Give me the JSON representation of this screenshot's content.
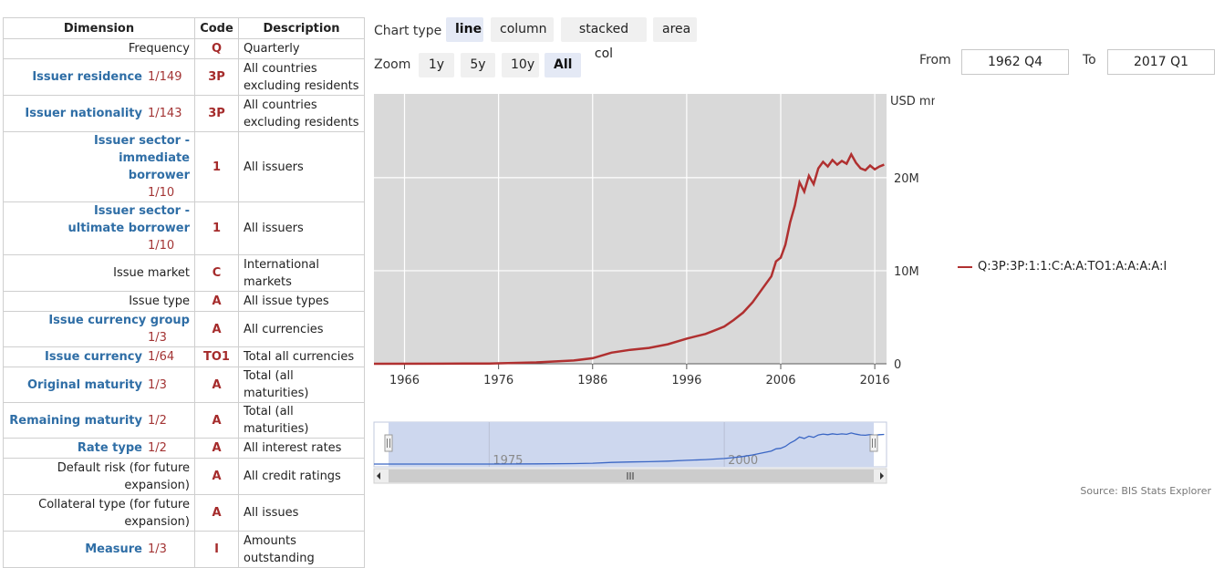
{
  "table": {
    "headers": {
      "dimension": "Dimension",
      "code": "Code",
      "description": "Description"
    },
    "rows": [
      {
        "dimension": "Frequency",
        "count": "",
        "code": "Q",
        "description": "Quarterly",
        "link": false,
        "single": true
      },
      {
        "dimension": "Issuer residence",
        "count": "1/149",
        "code": "3P",
        "description": "All countries excluding residents",
        "link": true,
        "single": false
      },
      {
        "dimension": "Issuer nationality",
        "count": "1/143",
        "code": "3P",
        "description": "All countries excluding residents",
        "link": true,
        "single": false
      },
      {
        "dimension": "Issuer sector - immediate borrower",
        "count": "1/10",
        "code": "1",
        "description": "All issuers",
        "link": true,
        "single": false
      },
      {
        "dimension": "Issuer sector - ultimate borrower",
        "count": "1/10",
        "code": "1",
        "description": "All issuers",
        "link": true,
        "single": false
      },
      {
        "dimension": "Issue market",
        "count": "",
        "code": "C",
        "description": "International markets",
        "link": false,
        "single": false
      },
      {
        "dimension": "Issue type",
        "count": "",
        "code": "A",
        "description": "All issue types",
        "link": false,
        "single": true
      },
      {
        "dimension": "Issue currency group",
        "count": "1/3",
        "code": "A",
        "description": "All currencies",
        "link": true,
        "single": true
      },
      {
        "dimension": "Issue currency",
        "count": "1/64",
        "code": "TO1",
        "description": "Total all currencies",
        "link": true,
        "single": true
      },
      {
        "dimension": "Original maturity",
        "count": "1/3",
        "code": "A",
        "description": "Total (all maturities)",
        "link": true,
        "single": true
      },
      {
        "dimension": "Remaining maturity",
        "count": "1/2",
        "code": "A",
        "description": "Total (all maturities)",
        "link": true,
        "single": true
      },
      {
        "dimension": "Rate type",
        "count": "1/2",
        "code": "A",
        "description": "All interest rates",
        "link": true,
        "single": true
      },
      {
        "dimension": "Default risk (for future expansion)",
        "count": "",
        "code": "A",
        "description": "All credit ratings",
        "link": false,
        "single": false
      },
      {
        "dimension": "Collateral type (for future expansion)",
        "count": "",
        "code": "A",
        "description": "All issues",
        "link": false,
        "single": false
      },
      {
        "dimension": "Measure",
        "count": "1/3",
        "code": "I",
        "description": "Amounts outstanding",
        "link": true,
        "single": false
      }
    ]
  },
  "controls": {
    "chart_type_label": "Chart type",
    "chart_types": [
      "line",
      "column",
      "stacked col",
      "area"
    ],
    "active_chart_type": "line",
    "zoom_label": "Zoom",
    "zoom_options": [
      "1y",
      "5y",
      "10y",
      "All"
    ],
    "active_zoom": "All",
    "from_label": "From",
    "from_value": "1962 Q4",
    "to_label": "To",
    "to_value": "2017 Q1"
  },
  "colors": {
    "series": "#b03030",
    "navigator_line": "#3a66c4",
    "plot_bg": "#d9d9d9",
    "navigator_mask": "#cdd7ee"
  },
  "chart_data": {
    "type": "line",
    "ylabel": "USD mn",
    "yticks": [
      "0",
      "10M",
      "20M"
    ],
    "ylim": [
      0,
      29000000
    ],
    "xlim": [
      1962.75,
      2017.25
    ],
    "xticks": [
      1966,
      1976,
      1986,
      1996,
      2006,
      2016
    ],
    "grid": true,
    "legend_position": "right",
    "navigator_labels": [
      "1975",
      "2000"
    ],
    "series": [
      {
        "name": "Q:3P:3P:1:1:C:A:A:TO1:A:A:A:A:I",
        "x": [
          1962.75,
          1970,
          1975,
          1980,
          1984,
          1986,
          1988,
          1990,
          1992,
          1994,
          1996,
          1998,
          1999,
          2000,
          2001,
          2002,
          2003,
          2004,
          2005,
          2005.5,
          2006,
          2006.5,
          2007,
          2007.5,
          2008,
          2008.5,
          2009,
          2009.5,
          2010,
          2010.5,
          2011,
          2011.5,
          2012,
          2012.5,
          2013,
          2013.5,
          2014,
          2014.5,
          2015,
          2015.5,
          2016,
          2016.5,
          2017
        ],
        "values": [
          0,
          10000,
          30000,
          150000,
          350000,
          600000,
          1200000,
          1500000,
          1700000,
          2100000,
          2700000,
          3200000,
          3600000,
          4000000,
          4700000,
          5500000,
          6600000,
          8000000,
          9400000,
          11000000,
          11400000,
          12800000,
          15200000,
          17000000,
          19500000,
          18500000,
          20200000,
          19300000,
          21000000,
          21700000,
          21200000,
          21900000,
          21400000,
          21800000,
          21500000,
          22500000,
          21600000,
          21000000,
          20800000,
          21300000,
          20900000,
          21200000,
          21400000
        ]
      }
    ]
  },
  "source": "Source: BIS Stats Explorer"
}
